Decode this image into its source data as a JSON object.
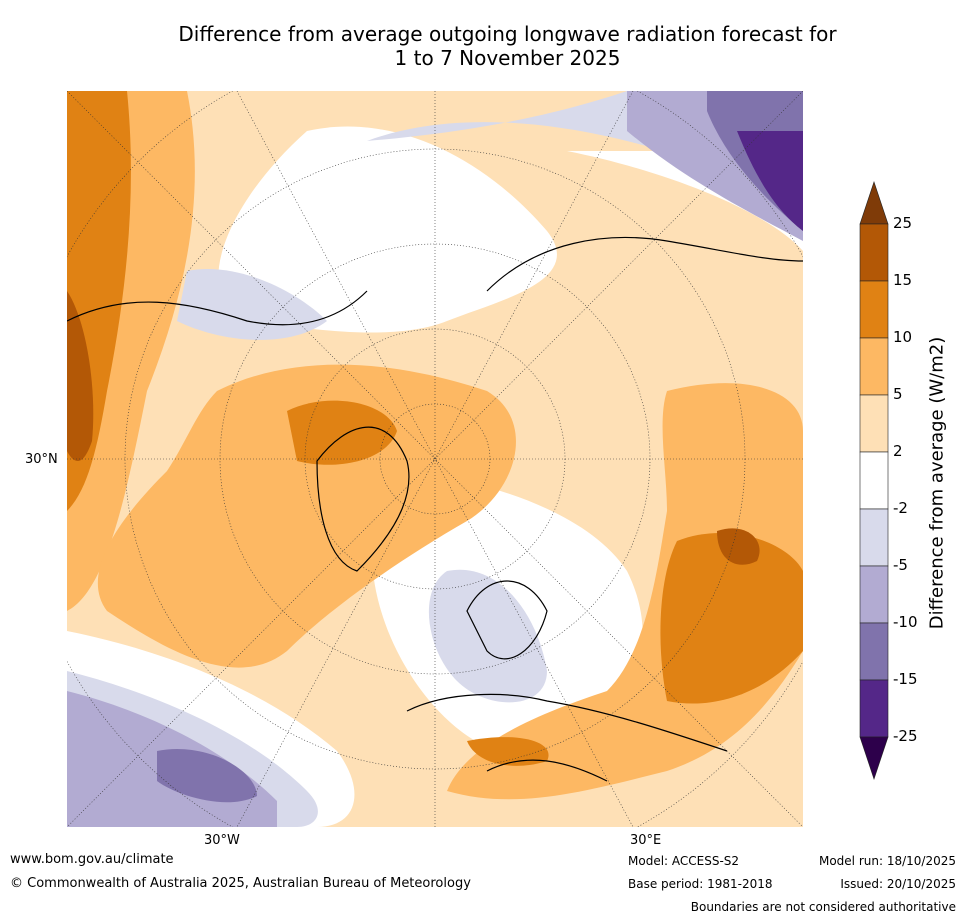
{
  "title": {
    "line1": "Difference from average outgoing longwave radiation forecast for",
    "line2": "1 to 7 November 2025"
  },
  "map": {
    "projection": "north-polar-stereographic",
    "axis_labels": {
      "lat_30n": "30°N",
      "lon_30w": "30°W",
      "lon_30e": "30°E"
    }
  },
  "colorbar": {
    "title": "Difference from average (W/m2)",
    "ticks": [
      "25",
      "15",
      "10",
      "5",
      "2",
      "-2",
      "-5",
      "-10",
      "-15",
      "-25"
    ],
    "levels": [
      {
        "range": "> 25",
        "color": "#7f3b08"
      },
      {
        "range": "15 to 25",
        "color": "#b35806"
      },
      {
        "range": "10 to 15",
        "color": "#e08214"
      },
      {
        "range": "5 to 10",
        "color": "#fdb863"
      },
      {
        "range": "2 to 5",
        "color": "#fee0b6"
      },
      {
        "range": "-2 to 2",
        "color": "#ffffff"
      },
      {
        "range": "-5 to -2",
        "color": "#d8daeb"
      },
      {
        "range": "-10 to -5",
        "color": "#b2abd2"
      },
      {
        "range": "-15 to -10",
        "color": "#8073ac"
      },
      {
        "range": "-25 to -15",
        "color": "#542788"
      },
      {
        "range": "< -25",
        "color": "#2d004b"
      }
    ]
  },
  "footer": {
    "website": "www.bom.gov.au/climate",
    "copyright": "© Commonwealth of Australia 2025, Australian Bureau of Meteorology",
    "model": "Model: ACCESS-S2",
    "base_period": "Base period: 1981-2018",
    "model_run": "Model run: 18/10/2025",
    "issued": "Issued: 20/10/2025",
    "disclaimer": "Boundaries are not considered authoritative"
  }
}
